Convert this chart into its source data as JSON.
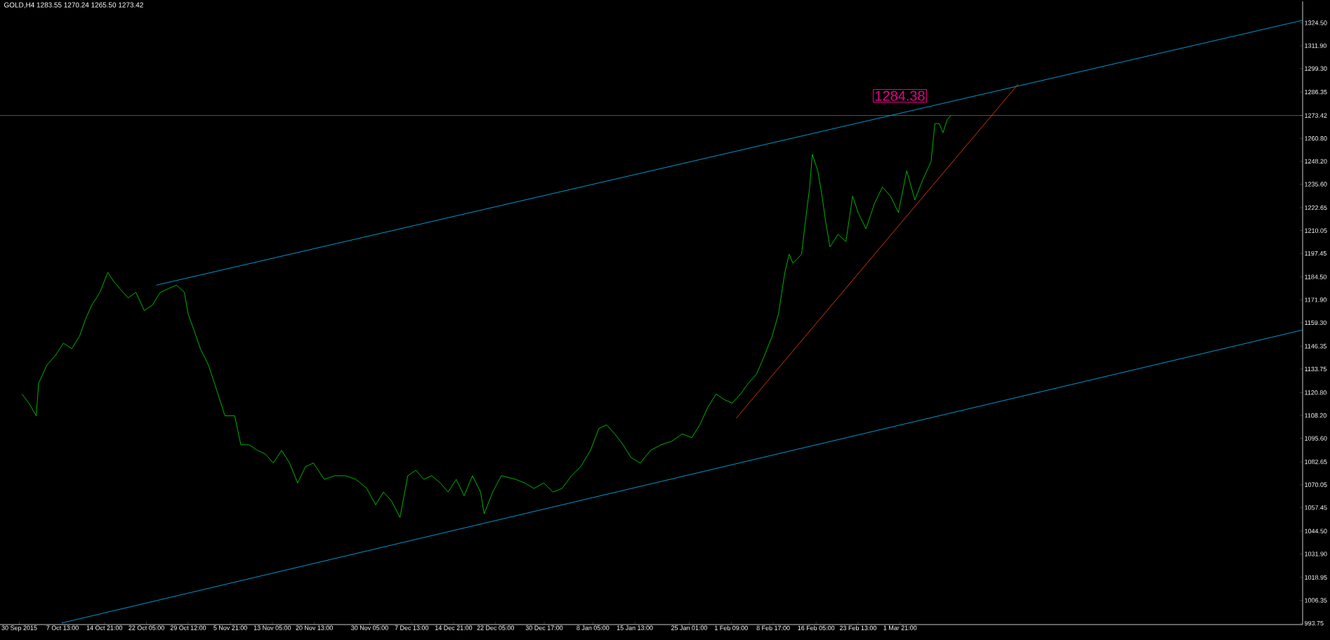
{
  "chart_data": {
    "type": "line",
    "title": "GOLD,H4 1283.55 1270.24 1265.50 1273.42",
    "xlim": [
      "2015-09-26T15:00",
      "2016-05-11T05:00"
    ],
    "ylim": [
      993.0,
      1336.3
    ],
    "xticks": [
      {
        "value": "2015-09-30",
        "label": "30 Sep 2015"
      },
      {
        "value": "2015-10-07T13:00",
        "label": "7 Oct 13:00"
      },
      {
        "value": "2015-10-14T21:00",
        "label": "14 Oct 21:00"
      },
      {
        "value": "2015-10-22T05:00",
        "label": "22 Oct 05:00"
      },
      {
        "value": "2015-10-29T12:00",
        "label": "29 Oct 12:00"
      },
      {
        "value": "2015-11-05T21:00",
        "label": "5 Nov 21:00"
      },
      {
        "value": "2015-11-13T05:00",
        "label": "13 Nov 05:00"
      },
      {
        "value": "2015-11-20T13:00",
        "label": "20 Nov 13:00"
      },
      {
        "value": "2015-11-30T05:00",
        "label": "30 Nov 05:00"
      },
      {
        "value": "2015-12-07T13:00",
        "label": "7 Dec 13:00"
      },
      {
        "value": "2015-12-14T21:00",
        "label": "14 Dec 21:00"
      },
      {
        "value": "2015-12-22T05:00",
        "label": "22 Dec 05:00"
      },
      {
        "value": "2015-12-30T17:00",
        "label": "30 Dec 17:00"
      },
      {
        "value": "2016-01-08T05:00",
        "label": "8 Jan 05:00"
      },
      {
        "value": "2016-01-15T13:00",
        "label": "15 Jan 13:00"
      },
      {
        "value": "2016-01-25T01:00",
        "label": "25 Jan 01:00"
      },
      {
        "value": "2016-02-01T09:00",
        "label": "1 Feb 09:00"
      },
      {
        "value": "2016-02-08T17:00",
        "label": "8 Feb 17:00"
      },
      {
        "value": "2016-02-16T05:00",
        "label": "16 Feb 05:00"
      },
      {
        "value": "2016-02-23T13:00",
        "label": "23 Feb 13:00"
      },
      {
        "value": "2016-03-01T21:00",
        "label": "1 Mar 21:00"
      }
    ],
    "yticks": [
      {
        "value": 993.75,
        "label": "993.75"
      },
      {
        "value": 1006.35,
        "label": "1006.35"
      },
      {
        "value": 1018.95,
        "label": "1018.95"
      },
      {
        "value": 1031.9,
        "label": "1031.90"
      },
      {
        "value": 1044.5,
        "label": "1044.50"
      },
      {
        "value": 1057.45,
        "label": "1057.45"
      },
      {
        "value": 1070.05,
        "label": "1070.05"
      },
      {
        "value": 1082.65,
        "label": "1082.65"
      },
      {
        "value": 1095.6,
        "label": "1095.60"
      },
      {
        "value": 1108.2,
        "label": "1108.20"
      },
      {
        "value": 1120.8,
        "label": "1120.80"
      },
      {
        "value": 1133.75,
        "label": "1133.75"
      },
      {
        "value": 1146.35,
        "label": "1146.35"
      },
      {
        "value": 1159.3,
        "label": "1159.30"
      },
      {
        "value": 1171.9,
        "label": "1171.90"
      },
      {
        "value": 1184.5,
        "label": "1184.50"
      },
      {
        "value": 1197.45,
        "label": "1197.45"
      },
      {
        "value": 1210.05,
        "label": "1210.05"
      },
      {
        "value": 1222.65,
        "label": "1222.65"
      },
      {
        "value": 1235.6,
        "label": "1235.60"
      },
      {
        "value": 1248.2,
        "label": "1248.20"
      },
      {
        "value": 1260.8,
        "label": "1260.80"
      },
      {
        "value": 1273.42,
        "label": "1273.42"
      },
      {
        "value": 1286.35,
        "label": "1286.35"
      },
      {
        "value": 1299.3,
        "label": "1299.30"
      },
      {
        "value": 1311.9,
        "label": "1311.90"
      },
      {
        "value": 1324.5,
        "label": "1324.50"
      }
    ],
    "ref_lines": [
      {
        "axis": "y",
        "value": 1273.42,
        "color": "#a0a0a0"
      }
    ],
    "annotations": [
      "1284.38"
    ],
    "series": [
      {
        "color": "#00e000",
        "x": [
          "2015-09-30T11:00",
          "2015-10-01T16:00",
          "2015-10-02T23:00",
          "2015-10-03T09:00",
          "2015-10-04T20:00",
          "2015-10-06T06:00",
          "2015-10-07T17:00",
          "2015-10-09T04:00",
          "2015-10-10T13:00",
          "2015-10-11T16:00",
          "2015-10-12T16:00",
          "2015-10-14T02:00",
          "2015-10-15T11:00",
          "2015-10-16T12:00",
          "2015-10-17T14:00",
          "2015-10-19T00:00",
          "2015-10-20T09:00",
          "2015-10-21T20:00",
          "2015-10-23T06:00",
          "2015-10-24T15:00",
          "2015-10-26T00:00",
          "2015-10-27T11:00",
          "2015-10-28T20:00",
          "2015-10-29T12:00",
          "2015-10-30T13:00",
          "2015-10-31T15:00",
          "2015-11-02T01:00",
          "2015-11-03T12:00",
          "2015-11-04T22:00",
          "2015-11-06T15:00",
          "2015-11-07T17:00",
          "2015-11-09T04:00",
          "2015-11-10T14:00",
          "2015-11-11T23:00",
          "2015-11-13T09:00",
          "2015-11-14T20:00",
          "2015-11-16T05:00",
          "2015-11-17T15:00",
          "2015-11-19T00:00",
          "2015-11-20T09:00",
          "2015-11-22T07:00",
          "2015-11-24T03:00",
          "2015-11-25T23:00",
          "2015-11-27T19:00",
          "2015-11-29T17:00",
          "2015-12-01T06:00",
          "2015-12-02T15:00",
          "2015-12-04T01:00",
          "2015-12-05T12:00",
          "2015-12-06T21:00",
          "2015-12-08T07:00",
          "2015-12-09T16:00",
          "2015-12-11T01:00",
          "2015-12-12T13:00",
          "2015-12-13T22:00",
          "2015-12-15T08:00",
          "2015-12-16T17:00",
          "2015-12-18T04:00",
          "2015-12-19T14:00",
          "2015-12-20T05:00",
          "2015-12-21T17:00",
          "2015-12-23T05:00",
          "2015-12-25T17:00",
          "2015-12-27T07:00",
          "2015-12-28T22:00",
          "2015-12-30T15:00",
          "2016-01-01T06:00",
          "2016-01-02T20:00",
          "2016-01-04T11:00",
          "2016-01-06T02:00",
          "2016-01-07T19:00",
          "2016-01-09T06:00",
          "2016-01-10T15:00",
          "2016-01-12T01:00",
          "2016-01-13T12:00",
          "2016-01-14T21:00",
          "2016-01-16T12:00",
          "2016-01-18T07:00",
          "2016-01-20T02:00",
          "2016-01-22T00:00",
          "2016-01-23T19:00",
          "2016-01-25T12:00",
          "2016-01-26T21:00",
          "2016-01-28T08:00",
          "2016-01-29T18:00",
          "2016-01-31T03:00",
          "2016-02-01T13:00",
          "2016-02-03T00:00",
          "2016-02-04T09:00",
          "2016-02-05T19:00",
          "2016-02-07T04:00",
          "2016-02-08T13:00",
          "2016-02-09T15:00",
          "2016-02-10T18:00",
          "2016-02-11T12:00",
          "2016-02-12T04:00",
          "2016-02-13T16:00",
          "2016-02-14T08:00",
          "2016-02-15T02:00",
          "2016-02-15T13:00",
          "2016-02-16T12:00",
          "2016-02-17T06:00",
          "2016-02-17T21:00",
          "2016-02-18T15:00",
          "2016-02-20T01:00",
          "2016-02-21T10:00",
          "2016-02-22T14:00",
          "2016-02-23T13:00",
          "2016-02-24T22:00",
          "2016-02-26T10:00",
          "2016-02-27T19:00",
          "2016-02-29T05:00",
          "2016-03-01T14:00",
          "2016-03-03T01:00",
          "2016-03-04T11:00",
          "2016-03-05T20:00",
          "2016-03-07T07:00",
          "2016-03-07T23:00",
          "2016-03-08T17:00",
          "2016-03-09T09:00",
          "2016-03-10T02:00",
          "2016-03-10T18:00"
        ],
        "values": [
          1120,
          1115,
          1108,
          1126,
          1136,
          1141,
          1148,
          1145,
          1152,
          1162,
          1169,
          1176,
          1187,
          1182,
          1178,
          1173,
          1176,
          1166,
          1169,
          1176,
          1178,
          1180,
          1176,
          1164,
          1155,
          1145,
          1136,
          1122,
          1108,
          1108,
          1092,
          1092,
          1089,
          1087,
          1082,
          1089,
          1082,
          1071,
          1080,
          1082,
          1073,
          1075,
          1075,
          1073,
          1068,
          1059,
          1066,
          1061,
          1052,
          1075,
          1078,
          1073,
          1075,
          1071,
          1066,
          1073,
          1064,
          1075,
          1066,
          1054,
          1066,
          1075,
          1073,
          1071,
          1068,
          1071,
          1066,
          1068,
          1075,
          1080,
          1089,
          1101,
          1103,
          1098,
          1092,
          1085,
          1082,
          1089,
          1092,
          1094,
          1098,
          1096,
          1103,
          1113,
          1120,
          1117,
          1115,
          1120,
          1126,
          1131,
          1141,
          1152,
          1164,
          1187,
          1197,
          1192,
          1197,
          1215,
          1234,
          1252,
          1243,
          1229,
          1215,
          1201,
          1208,
          1204,
          1229,
          1220,
          1211,
          1225,
          1234,
          1229,
          1220,
          1243,
          1227,
          1238,
          1248,
          1269,
          1269,
          1264,
          1271,
          1273.4
        ]
      },
      {
        "color": "#00bfff",
        "x": [
          "2015-10-23T23:00",
          "2016-05-11T05:00"
        ],
        "values": [
          1180.0,
          1325.9
        ]
      },
      {
        "color": "#00bfff",
        "x": [
          "2015-10-07T11:00",
          "2016-05-11T05:00"
        ],
        "values": [
          993.9,
          1155.3
        ]
      },
      {
        "color": "#ff4500",
        "x": [
          "2016-02-02T06:00",
          "2016-03-22T12:00"
        ],
        "values": [
          1106.7,
          1290.7
        ]
      }
    ]
  }
}
